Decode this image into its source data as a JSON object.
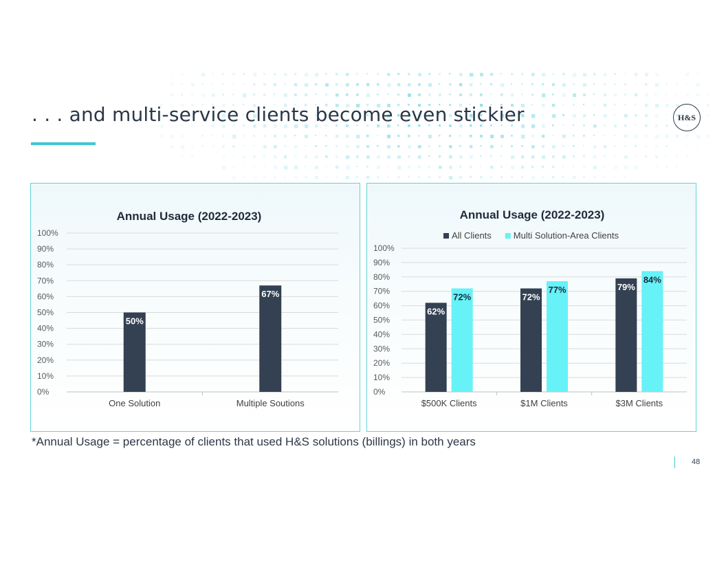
{
  "slide": {
    "title": ". . . and multi-service clients become even stickier",
    "logo_text": "H&S",
    "footnote": "*Annual Usage = percentage of clients that used H&S solutions (billings) in both years",
    "page_number": "48"
  },
  "colors": {
    "title": "#2b3747",
    "accent": "#3bc7d6",
    "panel_border": "#5fd3d6",
    "dark_bar": "#334152",
    "light_bar": "#66f2f7",
    "grid": "#d9d9d9",
    "axis_text": "#595959",
    "dots": "#3bc7d6"
  },
  "chart_data": [
    {
      "type": "bar",
      "title": "Annual Usage (2022-2023)",
      "categories": [
        "One Solution",
        "Multiple Soutions"
      ],
      "series": [
        {
          "values": [
            50,
            67
          ],
          "labels": [
            "50%",
            "67%"
          ],
          "color": "#334152"
        }
      ],
      "yticks": [
        "0%",
        "10%",
        "20%",
        "30%",
        "40%",
        "50%",
        "60%",
        "70%",
        "80%",
        "90%",
        "100%"
      ],
      "ylim": [
        0,
        100
      ],
      "grid": true,
      "legend": "none"
    },
    {
      "type": "bar",
      "title": "Annual Usage (2022-2023)",
      "categories": [
        "$500K Clients",
        "$1M Clients",
        "$3M Clients"
      ],
      "series": [
        {
          "name": "All Clients",
          "values": [
            62,
            72,
            79
          ],
          "labels": [
            "62%",
            "72%",
            "79%"
          ],
          "color": "#334152"
        },
        {
          "name": "Multi Solution-Area Clients",
          "values": [
            72,
            77,
            84
          ],
          "labels": [
            "72%",
            "77%",
            "84%"
          ],
          "color": "#66f2f7"
        }
      ],
      "yticks": [
        "0%",
        "10%",
        "20%",
        "30%",
        "40%",
        "50%",
        "60%",
        "70%",
        "80%",
        "90%",
        "100%"
      ],
      "ylim": [
        0,
        100
      ],
      "grid": true,
      "legend": "top"
    }
  ]
}
